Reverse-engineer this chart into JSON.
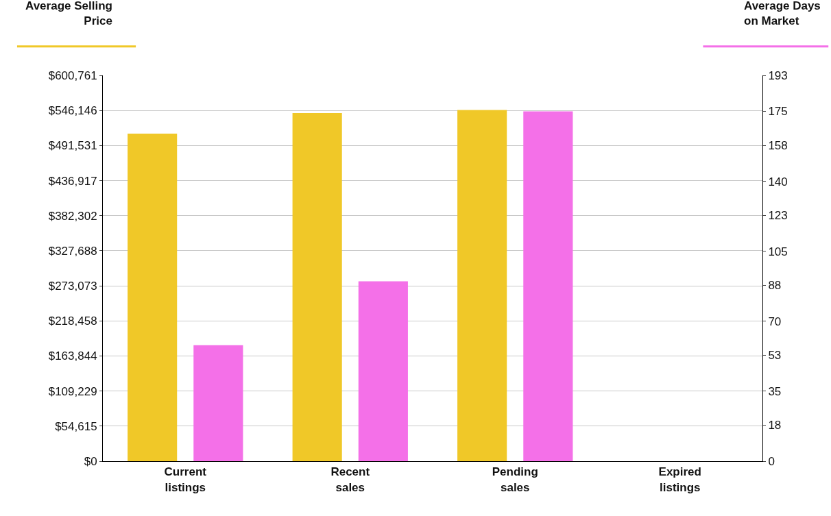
{
  "chart_data": {
    "type": "bar",
    "ylabel": "Average Selling Price",
    "y2label": "Average Days on Market",
    "categories": [
      "Current listings",
      "Recent sales",
      "Pending sales",
      "Expired listings"
    ],
    "series": [
      {
        "color": "#f0c828",
        "values": [
          510000,
          542000,
          547000,
          0
        ]
      },
      {
        "color": "#f470e8",
        "values": [
          58,
          90,
          175,
          0
        ],
        "axis": "y2"
      }
    ],
    "ylim": [
      0,
      600761
    ],
    "yticks": [
      {
        "value": 0,
        "label": "$0"
      },
      {
        "value": 54615,
        "label": "$54,615"
      },
      {
        "value": 109229,
        "label": "$109,229"
      },
      {
        "value": 163844,
        "label": "$163,844"
      },
      {
        "value": 218458,
        "label": "$218,458"
      },
      {
        "value": 273073,
        "label": "$273,073"
      },
      {
        "value": 327688,
        "label": "$327,688"
      },
      {
        "value": 382302,
        "label": "$382,302"
      },
      {
        "value": 436917,
        "label": "$436,917"
      },
      {
        "value": 491531,
        "label": "$491,531"
      },
      {
        "value": 546146,
        "label": "$546,146"
      },
      {
        "value": 600761,
        "label": "$600,761"
      }
    ],
    "y2lim": [
      0,
      193
    ],
    "y2ticks": [
      0,
      18,
      35,
      53,
      70,
      88,
      105,
      123,
      140,
      158,
      175,
      193
    ],
    "grid": "y"
  }
}
